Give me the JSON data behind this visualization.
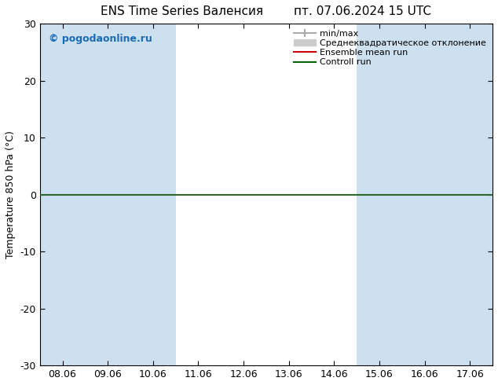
{
  "title": "ENS Time Series Валенсия",
  "title_right": "пт. 07.06.2024 15 UTC",
  "ylabel": "Temperature 850 hPa (°C)",
  "ylim": [
    -30,
    30
  ],
  "yticks": [
    -30,
    -20,
    -10,
    0,
    10,
    20,
    30
  ],
  "x_labels": [
    "08.06",
    "09.06",
    "10.06",
    "11.06",
    "12.06",
    "13.06",
    "14.06",
    "15.06",
    "16.06",
    "17.06"
  ],
  "x_values": [
    0,
    1,
    2,
    3,
    4,
    5,
    6,
    7,
    8,
    9
  ],
  "shaded_columns": [
    0,
    1,
    2,
    7,
    8,
    9
  ],
  "shade_color": "#cce0f0",
  "background_color": "#ffffff",
  "plot_bg_color": "#ffffff",
  "watermark": "© pogodaonline.ru",
  "watermark_color": "#1a6bb5",
  "legend_minmax": "min/max",
  "legend_std": "Среднеквадратическое отклонение",
  "legend_ensemble": "Ensemble mean run",
  "legend_control": "Controll run",
  "line_y0_color": "#2d6b2d",
  "ensemble_color": "#cc0000",
  "control_color": "#006600",
  "minmax_color": "#aaaaaa",
  "std_color": "#cccccc",
  "tick_color": "#000000",
  "spine_color": "#000000"
}
